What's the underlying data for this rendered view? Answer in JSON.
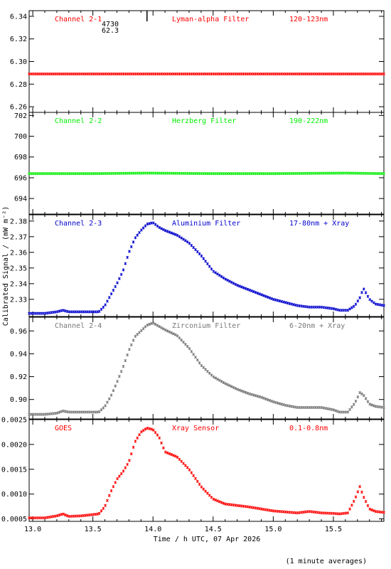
{
  "chart_data": {
    "type": "scatter",
    "x_ticks": [
      "13.0",
      "13.5",
      "14.0",
      "14.5",
      "15.0",
      "15.5"
    ],
    "xlim": [
      12.97,
      15.92
    ],
    "xlabel": "Time / h UTC, 07 Apr 2026",
    "ylabel": "Calibrated Signal / (mW m⁻²)",
    "footnote": "(1 minute averages)",
    "annotation": {
      "line1": "4730",
      "line2": "62.3",
      "x": 13.95
    },
    "panels": [
      {
        "channel": "Channel 2-1",
        "filter": "Lyman-alpha Filter",
        "band": "120-123nm",
        "color": "#ff0000",
        "ylim": [
          6.255,
          6.345
        ],
        "ytick_values": [
          6.26,
          6.28,
          6.3,
          6.32,
          6.34
        ],
        "ytick_labels": [
          "6.26",
          "6.28",
          "6.30",
          "6.32",
          "6.34"
        ],
        "x": [
          12.97,
          15.92
        ],
        "y": [
          6.289,
          6.289
        ]
      },
      {
        "channel": "Channel 2-2",
        "filter": "Herzberg Filter",
        "band": "190-222nm",
        "color": "#00ee00",
        "ylim": [
          692.5,
          702.3
        ],
        "ytick_values": [
          694,
          696,
          698,
          700,
          702
        ],
        "ytick_labels": [
          "694",
          "696",
          "698",
          "700",
          "702"
        ],
        "x": [
          12.97,
          13.5,
          13.95,
          14.5,
          15.0,
          15.6,
          15.92
        ],
        "y": [
          696.4,
          696.4,
          696.45,
          696.4,
          696.4,
          696.45,
          696.4
        ]
      },
      {
        "channel": "Channel 2-3",
        "filter": "Aluminium Filter",
        "band": "17-80nm + Xray",
        "color": "#0000cc",
        "ylim": [
          2.319,
          2.384
        ],
        "ytick_values": [
          2.33,
          2.34,
          2.35,
          2.36,
          2.37,
          2.38
        ],
        "ytick_labels": [
          "2.33",
          "2.34",
          "2.35",
          "2.36",
          "2.37",
          "2.38"
        ],
        "x": [
          12.97,
          13.1,
          13.2,
          13.25,
          13.3,
          13.4,
          13.55,
          13.6,
          13.65,
          13.7,
          13.75,
          13.8,
          13.85,
          13.9,
          13.95,
          14.0,
          14.05,
          14.1,
          14.2,
          14.3,
          14.4,
          14.5,
          14.6,
          14.7,
          14.8,
          14.9,
          15.0,
          15.1,
          15.2,
          15.3,
          15.4,
          15.5,
          15.55,
          15.62,
          15.68,
          15.72,
          15.75,
          15.8,
          15.85,
          15.92
        ],
        "y": [
          2.321,
          2.321,
          2.322,
          2.323,
          2.322,
          2.322,
          2.322,
          2.326,
          2.333,
          2.34,
          2.348,
          2.36,
          2.369,
          2.374,
          2.378,
          2.379,
          2.376,
          2.374,
          2.371,
          2.366,
          2.358,
          2.348,
          2.343,
          2.339,
          2.336,
          2.333,
          2.33,
          2.328,
          2.326,
          2.325,
          2.325,
          2.324,
          2.323,
          2.323,
          2.326,
          2.331,
          2.337,
          2.33,
          2.327,
          2.326
        ]
      },
      {
        "channel": "Channel 2-4",
        "filter": "Zirconium Filter",
        "band": "6-20nm + Xray",
        "color": "#777777",
        "ylim": [
          0.883,
          0.972
        ],
        "ytick_values": [
          0.9,
          0.92,
          0.94,
          0.96
        ],
        "ytick_labels": [
          "0.90",
          "0.92",
          "0.94",
          "0.96"
        ],
        "x": [
          12.97,
          13.1,
          13.2,
          13.25,
          13.3,
          13.4,
          13.55,
          13.6,
          13.65,
          13.7,
          13.75,
          13.8,
          13.85,
          13.9,
          13.95,
          14.0,
          14.05,
          14.1,
          14.2,
          14.3,
          14.4,
          14.5,
          14.6,
          14.7,
          14.8,
          14.9,
          15.0,
          15.1,
          15.2,
          15.3,
          15.4,
          15.5,
          15.55,
          15.62,
          15.68,
          15.72,
          15.75,
          15.8,
          15.85,
          15.92
        ],
        "y": [
          0.887,
          0.887,
          0.888,
          0.89,
          0.889,
          0.889,
          0.889,
          0.894,
          0.903,
          0.915,
          0.928,
          0.943,
          0.955,
          0.96,
          0.965,
          0.967,
          0.964,
          0.961,
          0.956,
          0.945,
          0.93,
          0.92,
          0.914,
          0.909,
          0.905,
          0.902,
          0.898,
          0.895,
          0.893,
          0.893,
          0.893,
          0.891,
          0.889,
          0.889,
          0.897,
          0.906,
          0.904,
          0.896,
          0.894,
          0.893
        ]
      },
      {
        "channel": "GOES",
        "filter": "Xray Sensor",
        "band": "0.1-0.8nm",
        "color": "#ff0000",
        "ylim": [
          0.00045,
          0.0025
        ],
        "ytick_values": [
          0.0005,
          0.001,
          0.0015,
          0.002,
          0.0025
        ],
        "ytick_labels": [
          "0.0005",
          "0.0010",
          "0.0015",
          "0.0020",
          "0.0025"
        ],
        "x": [
          12.97,
          13.1,
          13.2,
          13.25,
          13.3,
          13.4,
          13.55,
          13.6,
          13.65,
          13.7,
          13.75,
          13.8,
          13.85,
          13.9,
          13.95,
          14.0,
          14.05,
          14.1,
          14.2,
          14.3,
          14.4,
          14.5,
          14.6,
          14.7,
          14.8,
          14.9,
          15.0,
          15.1,
          15.2,
          15.3,
          15.4,
          15.5,
          15.55,
          15.62,
          15.68,
          15.72,
          15.75,
          15.8,
          15.85,
          15.92
        ],
        "y": [
          0.00052,
          0.00052,
          0.00056,
          0.0006,
          0.00055,
          0.00056,
          0.0006,
          0.00075,
          0.00105,
          0.0013,
          0.00145,
          0.00165,
          0.00205,
          0.00225,
          0.00233,
          0.0023,
          0.00215,
          0.00185,
          0.00175,
          0.0015,
          0.00115,
          0.0009,
          0.0008,
          0.00077,
          0.00074,
          0.0007,
          0.00066,
          0.00064,
          0.00062,
          0.00065,
          0.00062,
          0.00061,
          0.0006,
          0.00062,
          0.0009,
          0.00115,
          0.00095,
          0.0007,
          0.00065,
          0.00063
        ]
      }
    ]
  }
}
